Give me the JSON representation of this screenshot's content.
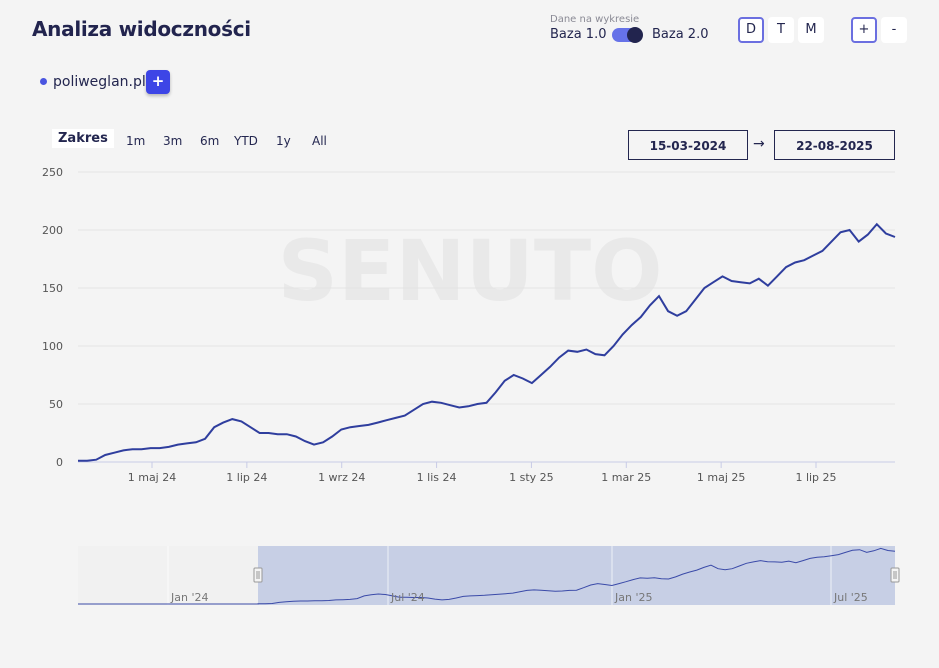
{
  "header": {
    "title": "Analiza widoczności",
    "data_label": "Dane na wykresie",
    "baza1": "Baza 1.0",
    "baza2": "Baza 2.0",
    "periods": [
      "D",
      "T",
      "M"
    ],
    "active_period": "D",
    "zoom_in": "+",
    "zoom_out": "-"
  },
  "domain": {
    "name": "poliweglan.pl",
    "add_label": "+"
  },
  "range": {
    "label": "Zakres",
    "buttons": [
      "1m",
      "3m",
      "6m",
      "YTD",
      "1y",
      "All"
    ],
    "date_from": "15-03-2024",
    "arrow": "→",
    "date_to": "22-08-2025"
  },
  "watermark": "SENUTO",
  "colors": {
    "line": "#2f3e9e",
    "accent": "#3d45e6",
    "navigator_fill": "#c7cfe5"
  },
  "chart_data": {
    "type": "line",
    "series": [
      {
        "values": [
          1,
          1,
          2,
          6,
          8,
          10,
          11,
          11,
          12,
          12,
          13,
          15,
          16,
          17,
          20,
          30,
          34,
          37,
          35,
          30,
          25,
          25,
          24,
          24,
          22,
          18,
          15,
          17,
          22,
          28,
          30,
          31,
          32,
          34,
          36,
          38,
          40,
          45,
          50,
          52,
          51,
          49,
          47,
          48,
          50,
          51,
          60,
          70,
          75,
          72,
          68,
          75,
          82,
          90,
          96,
          95,
          97,
          93,
          92,
          100,
          110,
          118,
          125,
          135,
          143,
          130,
          126,
          130,
          140,
          150,
          155,
          160,
          156,
          155,
          154,
          158,
          152,
          160,
          168,
          172,
          174,
          178,
          182,
          190,
          198,
          200,
          190,
          196,
          205,
          197,
          194
        ],
        "color": "#2f3e9e"
      }
    ],
    "x_tick_labels": [
      "1 maj 24",
      "1 lip 24",
      "1 wrz 24",
      "1 lis 24",
      "1 sty 25",
      "1 mar 25",
      "1 maj 25",
      "1 lip 25"
    ],
    "y_ticks": [
      0,
      50,
      100,
      150,
      200,
      250
    ],
    "ylim": [
      0,
      250
    ],
    "grid": true,
    "navigator": {
      "labels": [
        "Jan '24",
        "Jul '24",
        "Jan '25",
        "Jul '25"
      ]
    }
  }
}
